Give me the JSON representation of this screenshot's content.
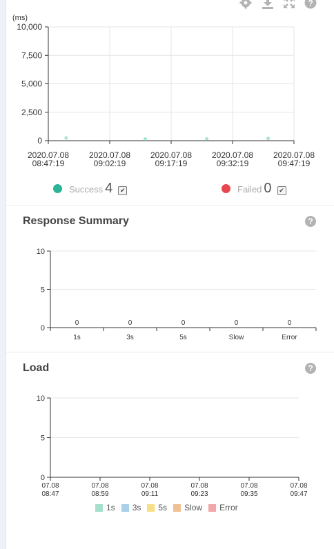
{
  "toolbar": {
    "icons": [
      "gear-icon",
      "download-icon",
      "expand-icon",
      "help-icon"
    ]
  },
  "chart_data": [
    {
      "type": "scatter",
      "title": "",
      "ylabel": "(ms)",
      "yticks": [
        "10,000",
        "7,500",
        "5,000",
        "2,500",
        "0"
      ],
      "ylim": [
        0,
        10000
      ],
      "xticks": [
        [
          "2020.07.08",
          "08:47:19"
        ],
        [
          "2020.07.08",
          "09:02:19"
        ],
        [
          "2020.07.08",
          "09:17:19"
        ],
        [
          "2020.07.08",
          "09:32:19"
        ],
        [
          "2020.07.08",
          "09:47:19"
        ]
      ],
      "xlim": [
        "2020.07.08 08:47:19",
        "2020.07.08 09:47:19"
      ],
      "points": [
        {
          "x": "2020.07.08 08:51:40",
          "y": 120
        },
        {
          "x": "2020.07.08 09:11:00",
          "y": 30
        },
        {
          "x": "2020.07.08 09:26:00",
          "y": 40
        },
        {
          "x": "2020.07.08 09:41:00",
          "y": 80
        }
      ],
      "point_color": "#a8e2d6",
      "grid": true,
      "legend": {
        "success_label": "Success",
        "success_count": "4",
        "success_color": "#2bb596",
        "failed_label": "Failed",
        "failed_count": "0",
        "failed_color": "#e8474f"
      }
    },
    {
      "type": "bar",
      "title": "Response Summary",
      "categories": [
        "1s",
        "3s",
        "5s",
        "Slow",
        "Error"
      ],
      "values": [
        0,
        0,
        0,
        0,
        0
      ],
      "yticks": [
        "10",
        "5",
        "0"
      ],
      "ylim": [
        0,
        10
      ],
      "grid": true
    },
    {
      "type": "bar",
      "title": "Load",
      "x": [
        [
          "07.08",
          "08:47"
        ],
        [
          "07.08",
          "08:59"
        ],
        [
          "07.08",
          "09:11"
        ],
        [
          "07.08",
          "09:23"
        ],
        [
          "07.08",
          "09:35"
        ],
        [
          "07.08",
          "09:47"
        ]
      ],
      "yticks": [
        "10",
        "5",
        "0"
      ],
      "ylim": [
        0,
        10
      ],
      "series": [
        {
          "name": "1s",
          "color": "#a6dfcd"
        },
        {
          "name": "3s",
          "color": "#a9d0ea"
        },
        {
          "name": "5s",
          "color": "#f7df86"
        },
        {
          "name": "Slow",
          "color": "#f0c195"
        },
        {
          "name": "Error",
          "color": "#f2a7ab"
        }
      ],
      "grid": true
    }
  ]
}
